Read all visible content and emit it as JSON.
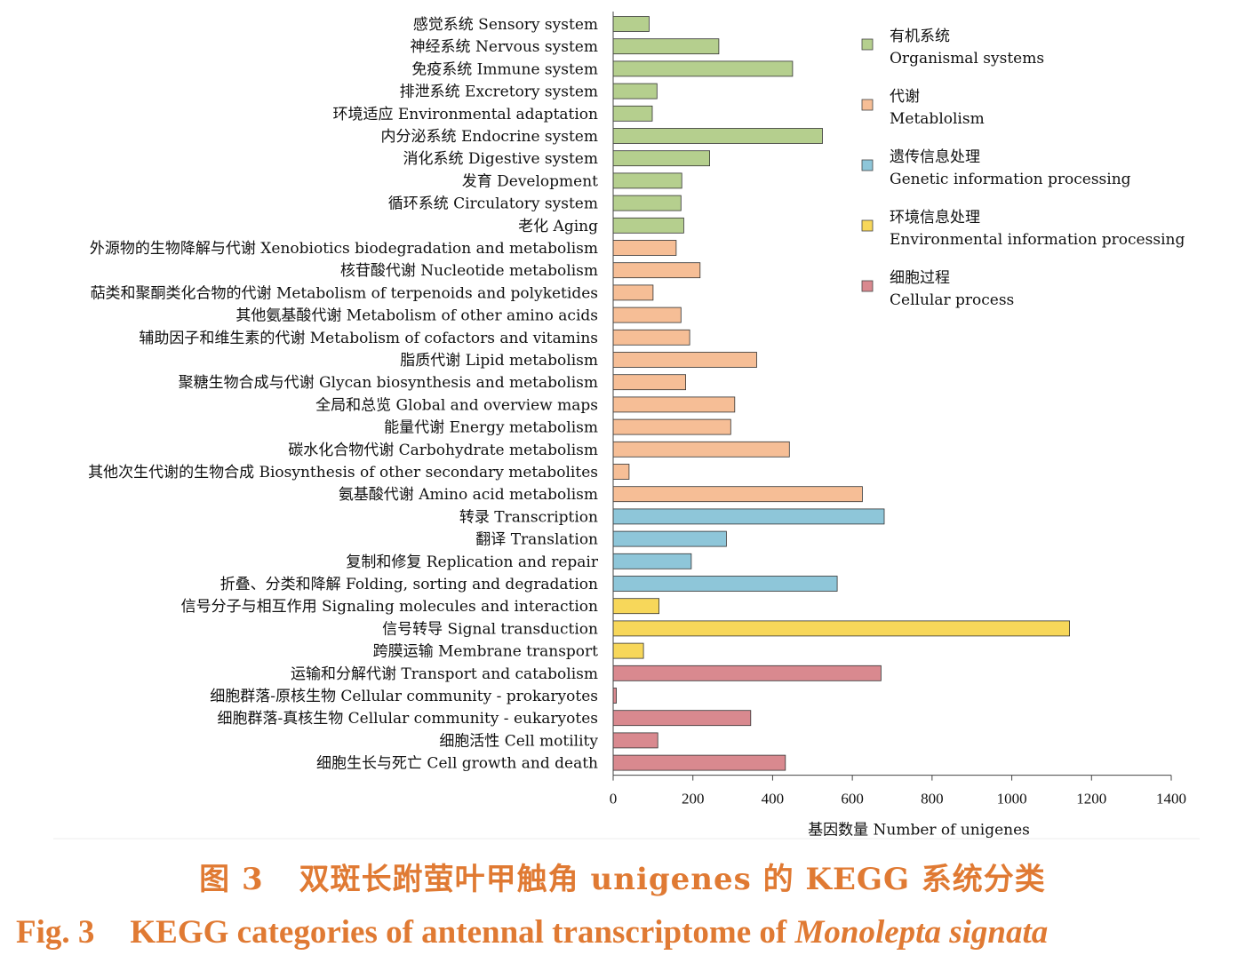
{
  "chart_data": {
    "type": "bar",
    "orientation": "horizontal",
    "xlabel": "基因数量 Number of unigenes",
    "xlim": [
      0,
      1400
    ],
    "xticks": [
      0,
      200,
      400,
      600,
      800,
      1000,
      1200,
      1400
    ],
    "grid": false,
    "legend_position": "top-right",
    "groups": [
      {
        "cn": "有机系统",
        "en": "Organismal systems",
        "color": "#b5cf8e"
      },
      {
        "cn": "代谢",
        "en": "Metablolism",
        "color": "#f6be96"
      },
      {
        "cn": "遗传信息处理",
        "en": "Genetic information processing",
        "color": "#8ec6d9"
      },
      {
        "cn": "环境信息处理",
        "en": "Environmental information processing",
        "color": "#f7d75a"
      },
      {
        "cn": "细胞过程",
        "en": "Cellular process",
        "color": "#d9898f"
      }
    ],
    "categories": [
      "感觉系统 Sensory system",
      "神经系统 Nervous system",
      "免疫系统 Immune system",
      "排泄系统 Excretory system",
      "环境适应 Environmental adaptation",
      "内分泌系统 Endocrine system",
      "消化系统 Digestive system",
      "发育 Development",
      "循环系统 Circulatory system",
      "老化 Aging",
      "外源物的生物降解与代谢 Xenobiotics biodegradation and metabolism",
      "核苷酸代谢 Nucleotide metabolism",
      "萜类和聚酮类化合物的代谢 Metabolism of terpenoids and polyketides",
      "其他氨基酸代谢 Metabolism of other amino acids",
      "辅助因子和维生素的代谢 Metabolism of cofactors and vitamins",
      "脂质代谢 Lipid metabolism",
      "聚糖生物合成与代谢 Glycan biosynthesis and metabolism",
      "全局和总览 Global and overview maps",
      "能量代谢 Energy metabolism",
      "碳水化合物代谢 Carbohydrate metabolism",
      "其他次生代谢的生物合成 Biosynthesis of other secondary metabolites",
      "氨基酸代谢 Amino acid metabolism",
      "转录 Transcription",
      "翻译 Translation",
      "复制和修复 Replication and repair",
      "折叠、分类和降解 Folding, sorting and degradation",
      "信号分子与相互作用 Signaling molecules and interaction",
      "信号转导 Signal transduction",
      "跨膜运输 Membrane transport",
      "运输和分解代谢 Transport and catabolism",
      "细胞群落-原核生物 Cellular community - prokaryotes",
      "细胞群落-真核生物 Cellular community - eukaryotes",
      "细胞活性 Cell motility",
      "细胞生长与死亡 Cell growth and death"
    ],
    "values": [
      90,
      265,
      450,
      110,
      98,
      525,
      242,
      172,
      170,
      177,
      158,
      218,
      100,
      170,
      192,
      360,
      182,
      305,
      295,
      442,
      40,
      625,
      680,
      284,
      196,
      562,
      115,
      1145,
      76,
      672,
      8,
      345,
      112,
      432
    ],
    "group_index": [
      0,
      0,
      0,
      0,
      0,
      0,
      0,
      0,
      0,
      0,
      1,
      1,
      1,
      1,
      1,
      1,
      1,
      1,
      1,
      1,
      1,
      1,
      2,
      2,
      2,
      2,
      3,
      3,
      3,
      4,
      4,
      4,
      4,
      4
    ]
  },
  "caption": {
    "cn_fig": "图 3",
    "cn_text": "双斑长跗萤叶甲触角 unigenes 的 KEGG 系统分类",
    "en_fig": "Fig. 3",
    "en_text": "KEGG categories of antennal transcriptome of ",
    "en_species": "Monolepta signata"
  }
}
